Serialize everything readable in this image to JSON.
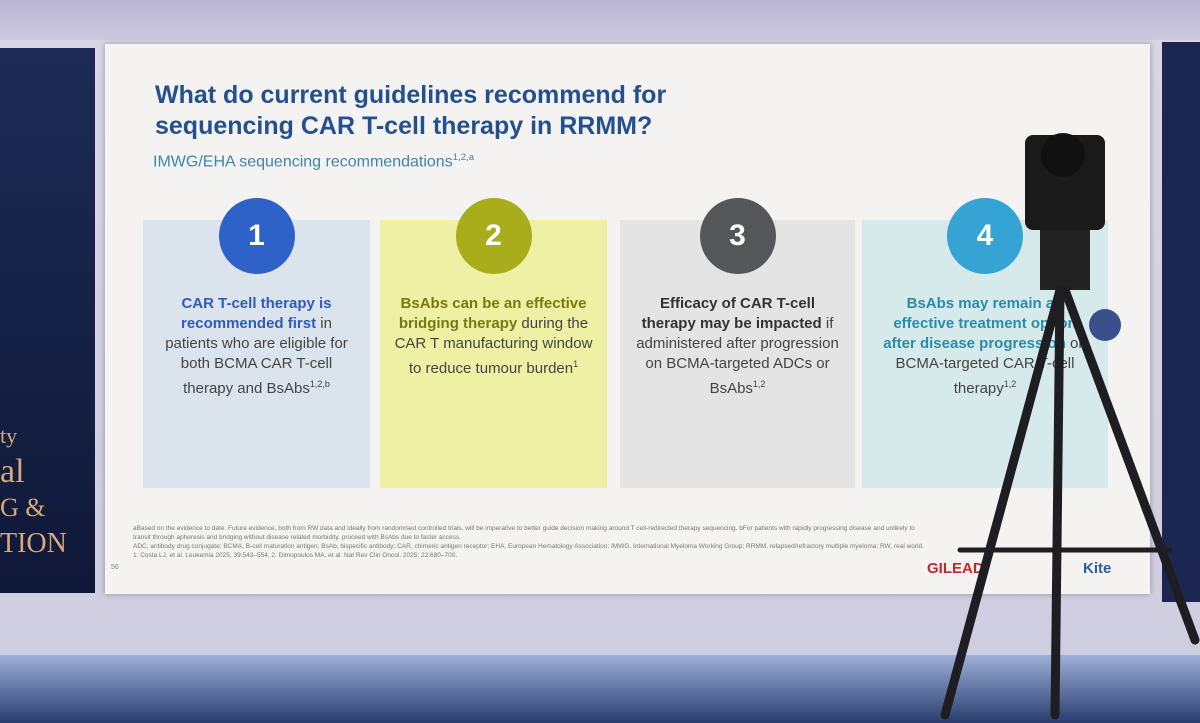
{
  "slide": {
    "title_line1": "What do current guidelines recommend for",
    "title_line2": "sequencing CAR T-cell therapy in RRMM?",
    "subtitle": "IMWG/EHA sequencing recommendations",
    "subtitle_sup": "1,2,a",
    "cards": [
      {
        "number": "1",
        "bold": "CAR T-cell therapy is recommended first",
        "text": "in patients who are eligible for both BCMA CAR T-cell therapy and BsAbs",
        "sup": "1,2,b"
      },
      {
        "number": "2",
        "bold": "BsAbs can be an effective bridging therapy",
        "text": "during the CAR T manufacturing window to reduce tumour burden",
        "sup": "1"
      },
      {
        "number": "3",
        "bold": "Efficacy of CAR T-cell therapy may be impacted",
        "text": "if administered after progression on BCMA-targeted ADCs or BsAbs",
        "sup": "1,2"
      },
      {
        "number": "4",
        "bold": "BsAbs may remain an effective treatment option after disease progression",
        "text": "on BCMA-targeted CAR T-cell therapy",
        "sup": "1,2"
      }
    ],
    "footnotes": [
      "aBased on the evidence to date. Future evidence, both from RW data and ideally from randomised controlled trials, will be imperative to better guide decision making around T cell-redirected therapy sequencing. bFor patients with rapidly progressing disease and unlikely to transit through apheresis and bridging without disease related morbidity, proceed with BsAbs due to faster access.",
      "ADC, antibody drug conjugate; BCMA, B-cell maturation antigen; BsAb, bispecific antibody; CAR, chimeric antigen receptor; EHA, European Hematology Association; IMWG, International Myeloma Working Group; RRMM, relapsed/refractory multiple myeloma; RW, real world.",
      "1. Costa LJ, et al. Leukemia 2025; 39:543–554; 2. Dimopoulos MA, et al. Nat Rev Clin Oncol. 2025; 22:680–700."
    ],
    "slide_number": "56",
    "logo_left": "GILEAD",
    "logo_right": "Kite"
  },
  "side_screen": [
    "ty",
    "al",
    "G &",
    "TION"
  ]
}
